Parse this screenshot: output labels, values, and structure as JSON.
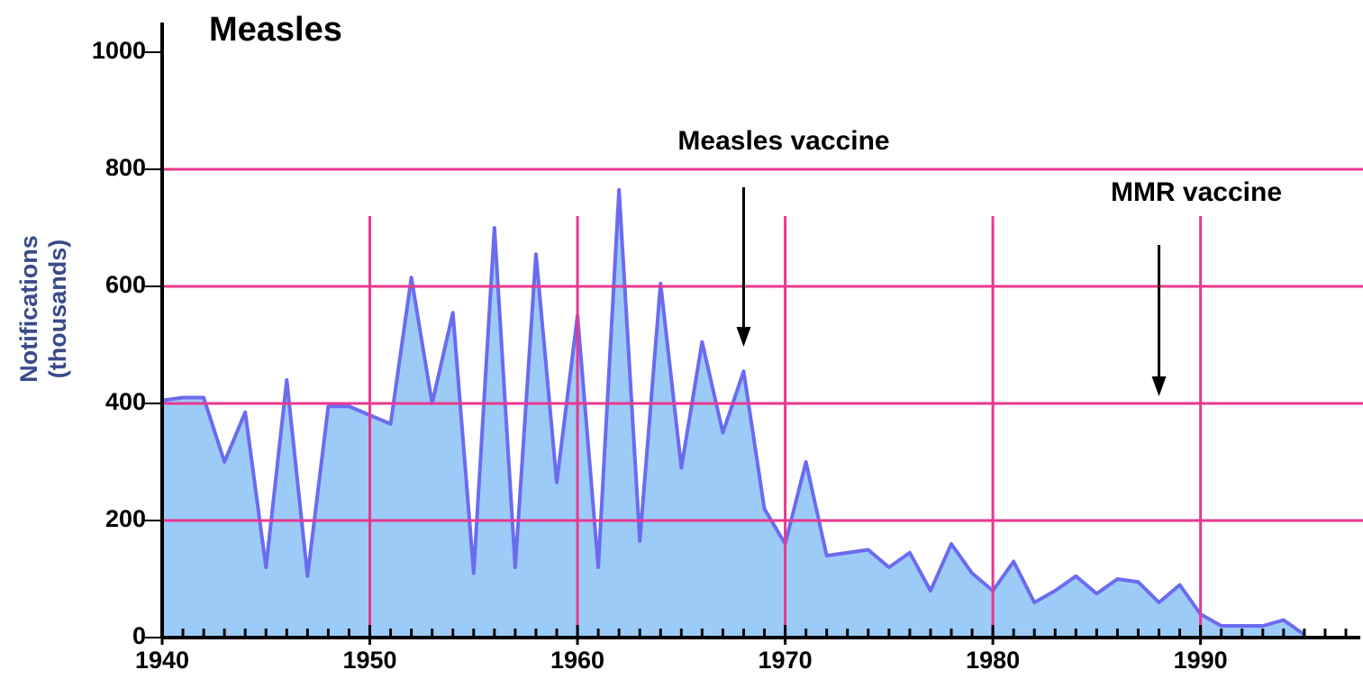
{
  "chart_data": {
    "type": "area",
    "title": "Measles",
    "ylabel": [
      "Notifications",
      "(thousands)"
    ],
    "x": [
      1940,
      1941,
      1942,
      1943,
      1944,
      1945,
      1946,
      1947,
      1948,
      1949,
      1950,
      1951,
      1952,
      1953,
      1954,
      1955,
      1956,
      1957,
      1958,
      1959,
      1960,
      1961,
      1962,
      1963,
      1964,
      1965,
      1966,
      1967,
      1968,
      1969,
      1970,
      1971,
      1972,
      1973,
      1974,
      1975,
      1976,
      1977,
      1978,
      1979,
      1980,
      1981,
      1982,
      1983,
      1984,
      1985,
      1986,
      1987,
      1988,
      1989,
      1990,
      1991,
      1992,
      1993,
      1994,
      1995
    ],
    "series": [
      {
        "name": "Notifications",
        "color": "#6b6bf0",
        "fill": "#9ccbf7",
        "values": [
          405,
          410,
          410,
          300,
          385,
          120,
          440,
          105,
          395,
          395,
          380,
          365,
          615,
          400,
          555,
          110,
          700,
          120,
          655,
          265,
          550,
          120,
          765,
          165,
          605,
          290,
          505,
          350,
          455,
          220,
          160,
          300,
          140,
          145,
          150,
          120,
          145,
          80,
          160,
          110,
          80,
          130,
          60,
          80,
          105,
          75,
          100,
          95,
          60,
          90,
          40,
          20,
          20,
          20,
          30,
          5
        ]
      }
    ],
    "xlim": [
      1940,
      1997
    ],
    "xticks": [
      1940,
      1950,
      1960,
      1970,
      1980,
      1990
    ],
    "ylim": [
      0,
      1000
    ],
    "yticks": [
      0,
      200,
      400,
      600,
      800,
      1000
    ],
    "grid": true,
    "grid_color": "#e8388f",
    "annotations": [
      {
        "text": "Measles vaccine",
        "x": 1968
      },
      {
        "text": "MMR vaccine",
        "x": 1988
      }
    ]
  }
}
